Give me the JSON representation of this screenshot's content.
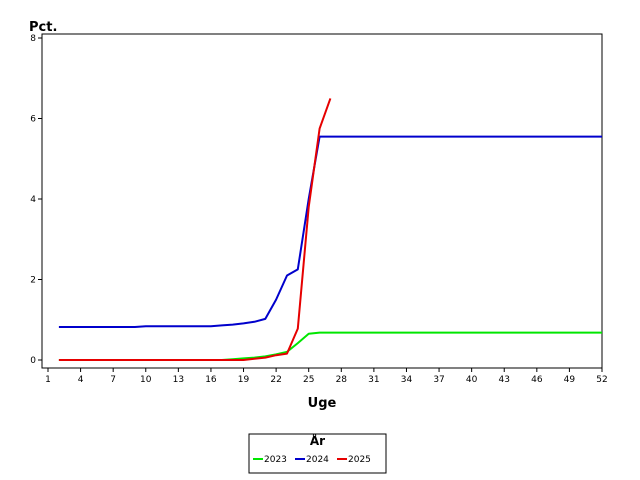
{
  "chart_data": {
    "type": "line",
    "ylabel": "Pct.",
    "xlabel": "Uge",
    "legend_title": "År",
    "legend_position": "bottom-center",
    "xlim": [
      1,
      52
    ],
    "ylim": [
      0,
      8
    ],
    "x_ticks": [
      1,
      4,
      7,
      10,
      13,
      16,
      19,
      22,
      25,
      28,
      31,
      34,
      37,
      40,
      43,
      46,
      49,
      52
    ],
    "y_ticks": [
      0,
      2,
      4,
      6,
      8
    ],
    "grid": false,
    "series": [
      {
        "name": "2023",
        "color": "#00e600",
        "x": [
          2,
          3,
          4,
          5,
          6,
          7,
          8,
          9,
          10,
          11,
          12,
          13,
          14,
          15,
          16,
          17,
          18,
          19,
          20,
          21,
          22,
          23,
          24,
          25,
          26,
          27,
          28,
          29,
          30,
          31,
          32,
          33,
          34,
          35,
          36,
          37,
          38,
          39,
          40,
          41,
          42,
          43,
          44,
          45,
          46,
          47,
          48,
          49,
          50,
          51,
          52
        ],
        "values": [
          0,
          0,
          0,
          0,
          0,
          0,
          0,
          0,
          0,
          0,
          0,
          0,
          0,
          0,
          0,
          0,
          0.02,
          0.04,
          0.06,
          0.09,
          0.14,
          0.2,
          0.42,
          0.65,
          0.68,
          0.68,
          0.68,
          0.68,
          0.68,
          0.68,
          0.68,
          0.68,
          0.68,
          0.68,
          0.68,
          0.68,
          0.68,
          0.68,
          0.68,
          0.68,
          0.68,
          0.68,
          0.68,
          0.68,
          0.68,
          0.68,
          0.68,
          0.68,
          0.68,
          0.68,
          0.68
        ]
      },
      {
        "name": "2024",
        "color": "#0000cc",
        "x": [
          2,
          3,
          4,
          5,
          6,
          7,
          8,
          9,
          10,
          11,
          12,
          13,
          14,
          15,
          16,
          17,
          18,
          19,
          20,
          21,
          22,
          23,
          24,
          25,
          26,
          27,
          28,
          29,
          30,
          31,
          32,
          33,
          34,
          35,
          36,
          37,
          38,
          39,
          40,
          41,
          42,
          43,
          44,
          45,
          46,
          47,
          48,
          49,
          50,
          51,
          52
        ],
        "values": [
          0.82,
          0.82,
          0.82,
          0.82,
          0.82,
          0.82,
          0.82,
          0.82,
          0.84,
          0.84,
          0.84,
          0.84,
          0.84,
          0.84,
          0.84,
          0.86,
          0.88,
          0.91,
          0.95,
          1.02,
          1.5,
          2.1,
          2.25,
          4.0,
          5.55,
          5.55,
          5.55,
          5.55,
          5.55,
          5.55,
          5.55,
          5.55,
          5.55,
          5.55,
          5.55,
          5.55,
          5.55,
          5.55,
          5.55,
          5.55,
          5.55,
          5.55,
          5.55,
          5.55,
          5.55,
          5.55,
          5.55,
          5.55,
          5.55,
          5.55,
          5.55
        ]
      },
      {
        "name": "2025",
        "color": "#e60000",
        "x": [
          2,
          3,
          4,
          5,
          6,
          7,
          8,
          9,
          10,
          11,
          12,
          13,
          14,
          15,
          16,
          17,
          18,
          19,
          20,
          21,
          22,
          23,
          24,
          25,
          26,
          27
        ],
        "values": [
          0,
          0,
          0,
          0,
          0,
          0,
          0,
          0,
          0,
          0,
          0,
          0,
          0,
          0,
          0,
          0,
          0,
          0,
          0.03,
          0.06,
          0.12,
          0.16,
          0.78,
          3.8,
          5.75,
          6.5
        ]
      }
    ]
  }
}
